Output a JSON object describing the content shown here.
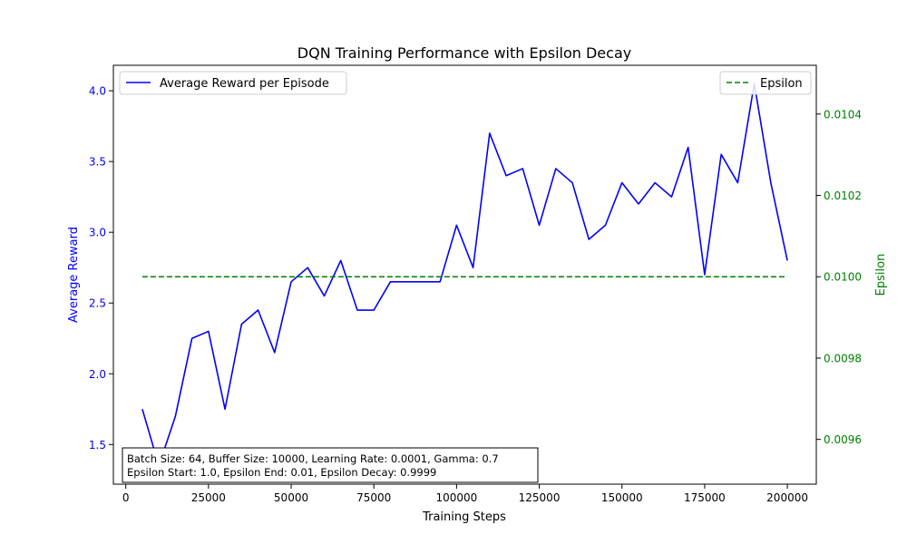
{
  "chart_data": {
    "type": "line",
    "title": "DQN Training Performance with Epsilon Decay",
    "xlabel": "Training Steps",
    "ylabel_left": "Average Reward",
    "ylabel_right": "Epsilon",
    "xlim": [
      -3750,
      208750
    ],
    "ylim_left": [
      1.22,
      4.18
    ],
    "ylim_right": [
      0.00949,
      0.01052
    ],
    "x_ticks": [
      0,
      25000,
      50000,
      75000,
      100000,
      125000,
      150000,
      175000,
      200000
    ],
    "y_left_ticks": [
      "1.5",
      "2.0",
      "2.5",
      "3.0",
      "3.5",
      "4.0"
    ],
    "y_right_ticks": [
      "0.0096",
      "0.0098",
      "0.0100",
      "0.0102",
      "0.0104"
    ],
    "grid": false,
    "x": [
      5000,
      10000,
      15000,
      20000,
      25000,
      30000,
      35000,
      40000,
      45000,
      50000,
      55000,
      60000,
      65000,
      70000,
      75000,
      80000,
      85000,
      90000,
      95000,
      100000,
      105000,
      110000,
      115000,
      120000,
      125000,
      130000,
      135000,
      140000,
      145000,
      150000,
      155000,
      160000,
      165000,
      170000,
      175000,
      180000,
      185000,
      190000,
      195000,
      200000
    ],
    "series": [
      {
        "name": "Average Reward per Episode",
        "axis": "left",
        "color": "#0000ff",
        "style": "solid",
        "legend_position": "upper-left",
        "values": [
          1.75,
          1.35,
          1.7,
          2.25,
          2.3,
          1.75,
          2.35,
          2.45,
          2.15,
          2.65,
          2.75,
          2.55,
          2.8,
          2.45,
          2.45,
          2.65,
          2.65,
          2.65,
          2.65,
          3.05,
          2.75,
          3.7,
          3.4,
          3.45,
          3.05,
          3.45,
          3.35,
          2.95,
          3.05,
          3.35,
          3.2,
          3.35,
          3.25,
          3.6,
          2.7,
          3.55,
          3.35,
          4.05,
          3.35,
          2.8
        ]
      },
      {
        "name": "Epsilon",
        "axis": "right",
        "color": "#008000",
        "style": "dashed",
        "legend_position": "upper-right",
        "values": [
          0.01,
          0.01,
          0.01,
          0.01,
          0.01,
          0.01,
          0.01,
          0.01,
          0.01,
          0.01,
          0.01,
          0.01,
          0.01,
          0.01,
          0.01,
          0.01,
          0.01,
          0.01,
          0.01,
          0.01,
          0.01,
          0.01,
          0.01,
          0.01,
          0.01,
          0.01,
          0.01,
          0.01,
          0.01,
          0.01,
          0.01,
          0.01,
          0.01,
          0.01,
          0.01,
          0.01,
          0.01,
          0.01,
          0.01,
          0.01
        ]
      }
    ],
    "annotation": {
      "line1": "Batch Size: 64, Buffer Size: 10000, Learning Rate: 0.0001, Gamma: 0.7",
      "line2": "Epsilon Start: 1.0, Epsilon End: 0.01, Epsilon Decay: 0.9999",
      "position": "lower-left"
    },
    "colors": {
      "left_axis": "#0000ff",
      "right_axis": "#008000",
      "text": "#000000"
    }
  }
}
